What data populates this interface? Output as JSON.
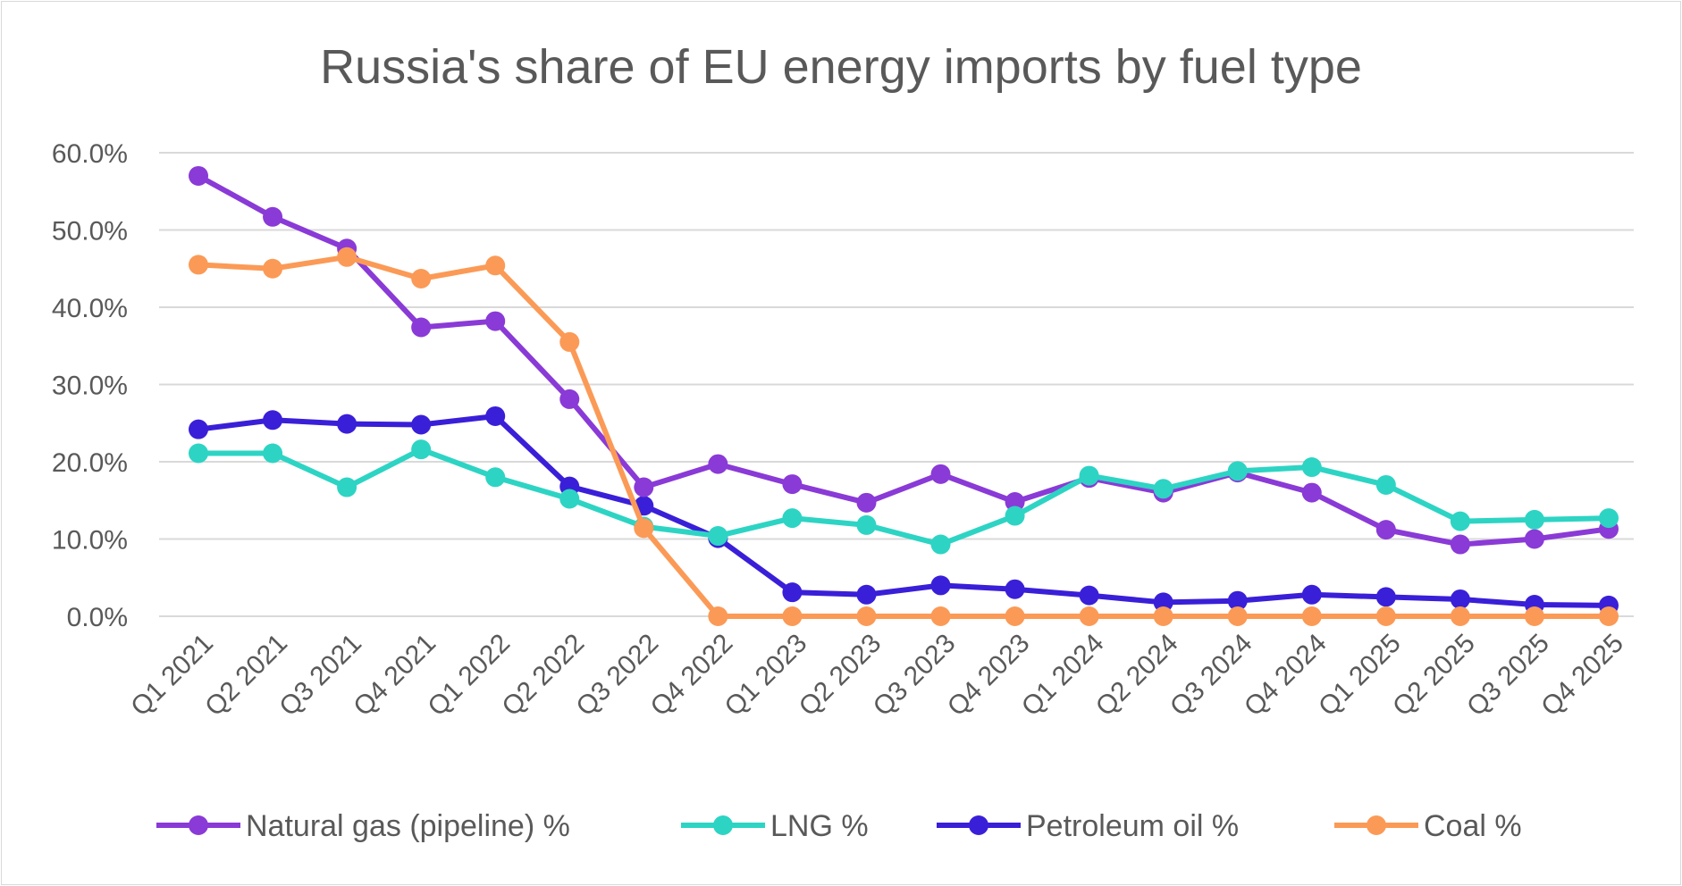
{
  "chart_data": {
    "type": "line",
    "title": "Russia's share of EU energy imports by fuel type",
    "xlabel": "",
    "ylabel": "",
    "ylim": [
      0,
      60
    ],
    "yticks": [
      "0.0%",
      "10.0%",
      "20.0%",
      "30.0%",
      "40.0%",
      "50.0%",
      "60.0%"
    ],
    "grid": true,
    "legend_position": "bottom",
    "categories": [
      "Q1 2021",
      "Q2 2021",
      "Q3 2021",
      "Q4 2021",
      "Q1 2022",
      "Q2 2022",
      "Q3 2022",
      "Q4 2022",
      "Q1 2023",
      "Q2 2023",
      "Q3 2023",
      "Q4 2023",
      "Q1 2024",
      "Q2 2024",
      "Q3 2024",
      "Q4 2024",
      "Q1 2025",
      "Q2 2025",
      "Q3 2025",
      "Q4 2025"
    ],
    "series": [
      {
        "name": "Natural gas (pipeline) %",
        "color": "#8a3ad6",
        "values": [
          57.0,
          51.7,
          47.6,
          37.4,
          38.2,
          28.1,
          16.7,
          19.7,
          17.1,
          14.7,
          18.4,
          14.8,
          17.9,
          16.0,
          18.6,
          16.0,
          11.2,
          9.3,
          10.0,
          11.3
        ]
      },
      {
        "name": "LNG %",
        "color": "#2dd4c4",
        "values": [
          21.1,
          21.1,
          16.7,
          21.6,
          18.0,
          15.2,
          11.6,
          10.4,
          12.7,
          11.8,
          9.3,
          13.0,
          18.2,
          16.5,
          18.8,
          19.3,
          17.0,
          12.3,
          12.5,
          12.7
        ]
      },
      {
        "name": "Petroleum oil %",
        "color": "#3a1fd8",
        "values": [
          24.2,
          25.4,
          24.9,
          24.8,
          25.9,
          16.8,
          14.3,
          10.1,
          3.1,
          2.8,
          4.0,
          3.5,
          2.7,
          1.8,
          2.0,
          2.8,
          2.5,
          2.2,
          1.5,
          1.4
        ]
      },
      {
        "name": "Coal %",
        "color": "#fb9a56",
        "values": [
          45.5,
          45.0,
          46.5,
          43.7,
          45.4,
          35.5,
          11.4,
          0.0,
          0.0,
          0.0,
          0.0,
          0.0,
          0.0,
          0.0,
          0.0,
          0.0,
          0.0,
          0.0,
          0.0,
          0.0
        ]
      }
    ]
  }
}
